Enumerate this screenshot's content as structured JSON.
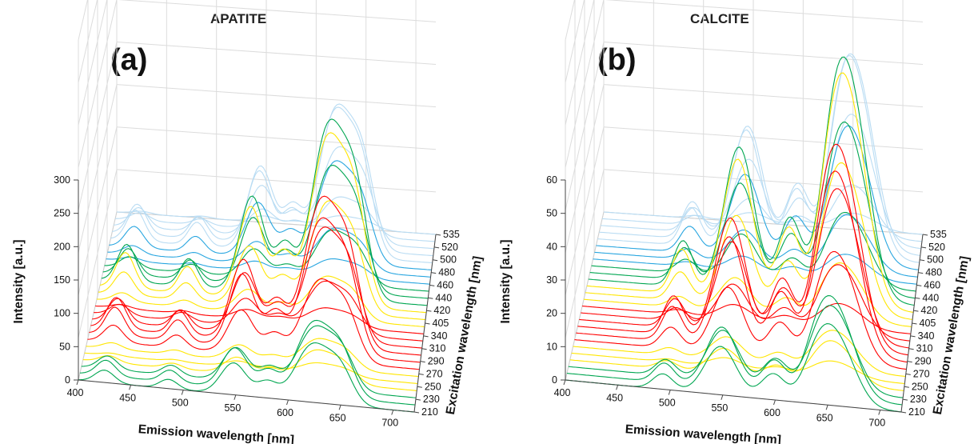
{
  "chart_data": [
    {
      "type": "3d-waterfall",
      "title": "APATITE",
      "panel_label": "(a)",
      "xlabel": "Emission wavelength [nm]",
      "ylabel": "Excitation wavelength [nm]",
      "zlabel": "Intensity [a.u.]",
      "x_ticks": [
        "400",
        "450",
        "500",
        "550",
        "600",
        "650",
        "700"
      ],
      "y_ticks": [
        "210",
        "230",
        "250",
        "270",
        "290",
        "310",
        "340",
        "405",
        "420",
        "440",
        "460",
        "480",
        "500",
        "520",
        "535"
      ],
      "z_ticks": [
        "0",
        "50",
        "100",
        "150",
        "200",
        "250",
        "300"
      ],
      "xlim": [
        400,
        720
      ],
      "zlim": [
        0,
        300
      ],
      "grid": true,
      "colormap": [
        "#f2f2f2",
        "#b9dcf3",
        "#29a6e0",
        "#00a651",
        "#ffe600",
        "#ff0000"
      ],
      "peaks": [
        {
          "x": 425,
          "z": 60
        },
        {
          "x": 486,
          "z": 45
        },
        {
          "x": 548,
          "z": 155
        },
        {
          "x": 580,
          "z": 75
        },
        {
          "x": 623,
          "z": 275
        },
        {
          "x": 650,
          "z": 150
        }
      ]
    },
    {
      "type": "3d-waterfall",
      "title": "CALCITE",
      "panel_label": "(b)",
      "xlabel": "Emission wavelength [nm]",
      "ylabel": "Excitation wavelength [nm]",
      "zlabel": "Intensity [a.u.]",
      "x_ticks": [
        "400",
        "450",
        "500",
        "550",
        "600",
        "650",
        "700"
      ],
      "y_ticks": [
        "210",
        "230",
        "250",
        "270",
        "290",
        "310",
        "340",
        "405",
        "420",
        "440",
        "460",
        "480",
        "500",
        "520",
        "535"
      ],
      "z_ticks": [
        "0",
        "10",
        "20",
        "30",
        "40",
        "50",
        "60"
      ],
      "xlim": [
        400,
        720
      ],
      "zlim": [
        0,
        60
      ],
      "grid": true,
      "colormap": [
        "#f2f2f2",
        "#b9dcf3",
        "#29a6e0",
        "#00a651",
        "#ffe600",
        "#ff0000"
      ],
      "peaks": [
        {
          "x": 493,
          "z": 15
        },
        {
          "x": 548,
          "z": 47
        },
        {
          "x": 598,
          "z": 25
        },
        {
          "x": 640,
          "z": 40
        },
        {
          "x": 660,
          "z": 58
        }
      ]
    }
  ]
}
